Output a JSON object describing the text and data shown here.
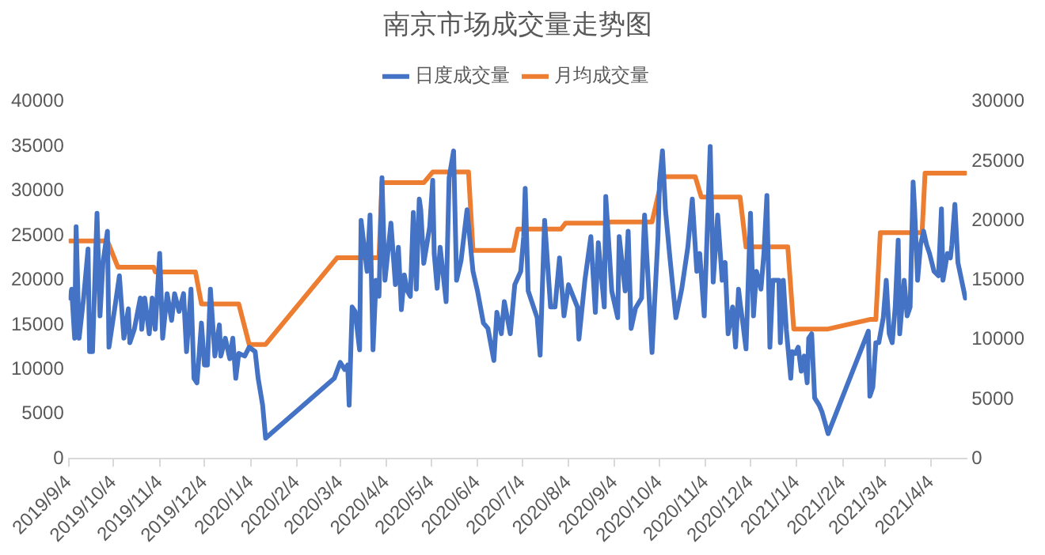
{
  "chart_data": {
    "type": "line",
    "title": "南京市场成交量走势图",
    "legend": "top",
    "marker": "none",
    "xlim": [
      "2019-09-04",
      "2021-04-28"
    ],
    "xticks": [
      {
        "value": "2019-09-04",
        "label": "2019/9/4"
      },
      {
        "value": "2019-10-04",
        "label": "2019/10/4"
      },
      {
        "value": "2019-11-04",
        "label": "2019/11/4"
      },
      {
        "value": "2019-12-04",
        "label": "2019/12/4"
      },
      {
        "value": "2020-01-04",
        "label": "2020/1/4"
      },
      {
        "value": "2020-02-04",
        "label": "2020/2/4"
      },
      {
        "value": "2020-03-04",
        "label": "2020/3/4"
      },
      {
        "value": "2020-04-04",
        "label": "2020/4/4"
      },
      {
        "value": "2020-05-04",
        "label": "2020/5/4"
      },
      {
        "value": "2020-06-04",
        "label": "2020/6/4"
      },
      {
        "value": "2020-07-04",
        "label": "2020/7/4"
      },
      {
        "value": "2020-08-04",
        "label": "2020/8/4"
      },
      {
        "value": "2020-09-04",
        "label": "2020/9/4"
      },
      {
        "value": "2020-10-04",
        "label": "2020/10/4"
      },
      {
        "value": "2020-11-04",
        "label": "2020/11/4"
      },
      {
        "value": "2020-12-04",
        "label": "2020/12/4"
      },
      {
        "value": "2021-01-04",
        "label": "2021/1/4"
      },
      {
        "value": "2021-02-04",
        "label": "2021/2/4"
      },
      {
        "value": "2021-03-04",
        "label": "2021/3/4"
      },
      {
        "value": "2021-04-04",
        "label": "2021/4/4"
      }
    ],
    "ylim": [
      0,
      40000
    ],
    "yticks": [
      0,
      5000,
      10000,
      15000,
      20000,
      25000,
      30000,
      35000,
      40000
    ],
    "y2lim": [
      0,
      30000
    ],
    "y2ticks": [
      0,
      5000,
      10000,
      15000,
      20000,
      25000,
      30000
    ],
    "series": [
      {
        "name": "日度成交量",
        "color": "#4472c4",
        "x": [
          "2019-09-05",
          "2019-09-06",
          "2019-09-08",
          "2019-09-09",
          "2019-09-11",
          "2019-09-14",
          "2019-09-17",
          "2019-09-18",
          "2019-09-20",
          "2019-09-23",
          "2019-09-25",
          "2019-09-27",
          "2019-09-30",
          "2019-10-01",
          "2019-10-05",
          "2019-10-08",
          "2019-10-11",
          "2019-10-14",
          "2019-10-15",
          "2019-10-18",
          "2019-10-22",
          "2019-10-23",
          "2019-10-25",
          "2019-10-28",
          "2019-10-30",
          "2019-11-01",
          "2019-11-04",
          "2019-11-06",
          "2019-11-09",
          "2019-11-12",
          "2019-11-14",
          "2019-11-17",
          "2019-11-20",
          "2019-11-22",
          "2019-11-25",
          "2019-11-27",
          "2019-11-29",
          "2019-12-02",
          "2019-12-04",
          "2019-12-06",
          "2019-12-08",
          "2019-12-11",
          "2019-12-14",
          "2019-12-15",
          "2019-12-18",
          "2019-12-21",
          "2019-12-23",
          "2019-12-25",
          "2019-12-27",
          "2019-12-31",
          "2020-01-03",
          "2020-01-07",
          "2020-01-09",
          "2020-01-12",
          "2020-01-14",
          "2020-02-29",
          "2020-03-04",
          "2020-03-07",
          "2020-03-09",
          "2020-03-10",
          "2020-03-12",
          "2020-03-14",
          "2020-03-17",
          "2020-03-18",
          "2020-03-22",
          "2020-03-24",
          "2020-03-26",
          "2020-03-28",
          "2020-03-30",
          "2020-04-01",
          "2020-04-03",
          "2020-04-07",
          "2020-04-10",
          "2020-04-12",
          "2020-04-14",
          "2020-04-16",
          "2020-04-18",
          "2020-04-20",
          "2020-04-22",
          "2020-04-24",
          "2020-04-26",
          "2020-04-27",
          "2020-04-29",
          "2020-05-03",
          "2020-05-05",
          "2020-05-06",
          "2020-05-08",
          "2020-05-10",
          "2020-05-14",
          "2020-05-16",
          "2020-05-19",
          "2020-05-21",
          "2020-05-24",
          "2020-05-28",
          "2020-06-01",
          "2020-06-04",
          "2020-06-08",
          "2020-06-11",
          "2020-06-15",
          "2020-06-17",
          "2020-06-20",
          "2020-06-22",
          "2020-06-26",
          "2020-06-29",
          "2020-07-03",
          "2020-07-05",
          "2020-07-06",
          "2020-07-08",
          "2020-07-14",
          "2020-07-16",
          "2020-07-19",
          "2020-07-23",
          "2020-07-26",
          "2020-07-29",
          "2020-08-01",
          "2020-08-04",
          "2020-08-10",
          "2020-08-11",
          "2020-08-15",
          "2020-08-19",
          "2020-08-22",
          "2020-08-24",
          "2020-08-28",
          "2020-08-29",
          "2020-09-02",
          "2020-09-06",
          "2020-09-07",
          "2020-09-11",
          "2020-09-13",
          "2020-09-15",
          "2020-09-18",
          "2020-09-22",
          "2020-09-24",
          "2020-09-27",
          "2020-09-29",
          "2020-10-03",
          "2020-10-04",
          "2020-10-06",
          "2020-10-08",
          "2020-10-11",
          "2020-10-15",
          "2020-10-19",
          "2020-10-23",
          "2020-10-26",
          "2020-10-29",
          "2020-10-31",
          "2020-11-03",
          "2020-11-07",
          "2020-11-09",
          "2020-11-12",
          "2020-11-15",
          "2020-11-17",
          "2020-11-19",
          "2020-11-22",
          "2020-11-24",
          "2020-11-26",
          "2020-11-27",
          "2020-11-29",
          "2020-12-01",
          "2020-12-04",
          "2020-12-06",
          "2020-12-08",
          "2020-12-11",
          "2020-12-13",
          "2020-12-15",
          "2020-12-17",
          "2020-12-19",
          "2020-12-23",
          "2020-12-24",
          "2020-12-26",
          "2020-12-28",
          "2020-12-31",
          "2021-01-01",
          "2021-01-03",
          "2021-01-05",
          "2021-01-07",
          "2021-01-09",
          "2021-01-11",
          "2021-01-12",
          "2021-01-14",
          "2021-01-16",
          "2021-01-19",
          "2021-01-21",
          "2021-01-25",
          "2021-02-21",
          "2021-02-22",
          "2021-02-24",
          "2021-02-26",
          "2021-02-28",
          "2021-03-03",
          "2021-03-05",
          "2021-03-07",
          "2021-03-09",
          "2021-03-11",
          "2021-03-13",
          "2021-03-14",
          "2021-03-17",
          "2021-03-19",
          "2021-03-21",
          "2021-03-23",
          "2021-03-24",
          "2021-03-26",
          "2021-03-28",
          "2021-03-30",
          "2021-04-01",
          "2021-04-03",
          "2021-04-06",
          "2021-04-09",
          "2021-04-11",
          "2021-04-12",
          "2021-04-15",
          "2021-04-17",
          "2021-04-18",
          "2021-04-20",
          "2021-04-22",
          "2021-04-27"
        ],
        "values": [
          18000,
          19000,
          13500,
          26000,
          13500,
          18000,
          23500,
          12000,
          12000,
          27500,
          16000,
          22000,
          25500,
          12500,
          17000,
          20500,
          13500,
          16800,
          13000,
          14500,
          18000,
          14500,
          18000,
          14000,
          18000,
          14500,
          23000,
          13500,
          18500,
          15500,
          18500,
          16500,
          18500,
          12000,
          19000,
          9000,
          8500,
          15200,
          10500,
          10500,
          19000,
          11500,
          15000,
          11500,
          13500,
          11200,
          13500,
          9000,
          11800,
          11500,
          12500,
          12000,
          9000,
          6000,
          2300,
          9000,
          10800,
          10000,
          10500,
          6000,
          17000,
          16500,
          12200,
          26700,
          21000,
          27300,
          12200,
          20000,
          18200,
          31500,
          20000,
          26400,
          19500,
          23700,
          16700,
          20600,
          18800,
          18200,
          27600,
          19000,
          29100,
          27900,
          21900,
          26000,
          31200,
          23000,
          19100,
          23700,
          17600,
          31500,
          34500,
          20000,
          22200,
          27900,
          21000,
          18800,
          15200,
          14600,
          11000,
          16400,
          14000,
          17600,
          14000,
          19500,
          21000,
          24900,
          30300,
          18800,
          15800,
          11600,
          26700,
          17000,
          17000,
          22500,
          16000,
          19500,
          17000,
          13400,
          20000,
          24900,
          16400,
          24200,
          17000,
          29400,
          18800,
          15800,
          24900,
          18800,
          25500,
          14600,
          16900,
          18000,
          27300,
          18200,
          11900,
          24900,
          30900,
          34500,
          27900,
          22500,
          15800,
          19100,
          23700,
          29100,
          21000,
          23000,
          16000,
          35000,
          19800,
          27300,
          20000,
          22000,
          14000,
          17000,
          12500,
          19000,
          17500,
          15000,
          12300,
          27500,
          16000,
          21000,
          19000,
          23000,
          29500,
          12500,
          20000,
          20000,
          13000,
          20000,
          14500,
          9000,
          12000,
          11800,
          12500,
          9800,
          11500,
          8500,
          13500,
          14000,
          6800,
          6000,
          5200,
          2800,
          14300,
          7000,
          8000,
          13000,
          13000,
          15800,
          20000,
          14000,
          13000,
          17000,
          24500,
          14000,
          20000,
          16000,
          17000,
          31000,
          28000,
          20000,
          24000,
          25500,
          24000,
          23000,
          21000,
          20500,
          28000,
          20000,
          23000,
          22500,
          24000,
          28500,
          22000,
          18000
        ]
      },
      {
        "name": "月均成交量",
        "color": "#ed7d31",
        "axis": "y2",
        "x": [
          "2019-09-05",
          "2019-09-30",
          "2019-10-07",
          "2019-10-31",
          "2019-11-01",
          "2019-11-28",
          "2019-12-02",
          "2019-12-27",
          "2020-01-03",
          "2020-01-14",
          "2020-03-02",
          "2020-03-30",
          "2020-04-01",
          "2020-04-29",
          "2020-05-05",
          "2020-05-29",
          "2020-06-01",
          "2020-06-28",
          "2020-07-01",
          "2020-07-30",
          "2020-08-02",
          "2020-08-29",
          "2020-09-01",
          "2020-09-29",
          "2020-10-06",
          "2020-10-28",
          "2020-11-01",
          "2020-11-27",
          "2020-12-01",
          "2020-12-29",
          "2021-01-02",
          "2021-01-25",
          "2021-02-22",
          "2021-02-26",
          "2021-03-01",
          "2021-03-29",
          "2021-03-31",
          "2021-04-27"
        ],
        "values": [
          18300,
          18300,
          16100,
          16100,
          15700,
          15700,
          13000,
          13000,
          9600,
          9600,
          16900,
          16900,
          23200,
          23200,
          24100,
          24100,
          17500,
          17500,
          19300,
          19300,
          19800,
          19800,
          19900,
          19900,
          23700,
          23700,
          22000,
          22000,
          17800,
          17800,
          10900,
          10900,
          11700,
          11700,
          19000,
          19000,
          24000,
          24000
        ]
      }
    ]
  }
}
